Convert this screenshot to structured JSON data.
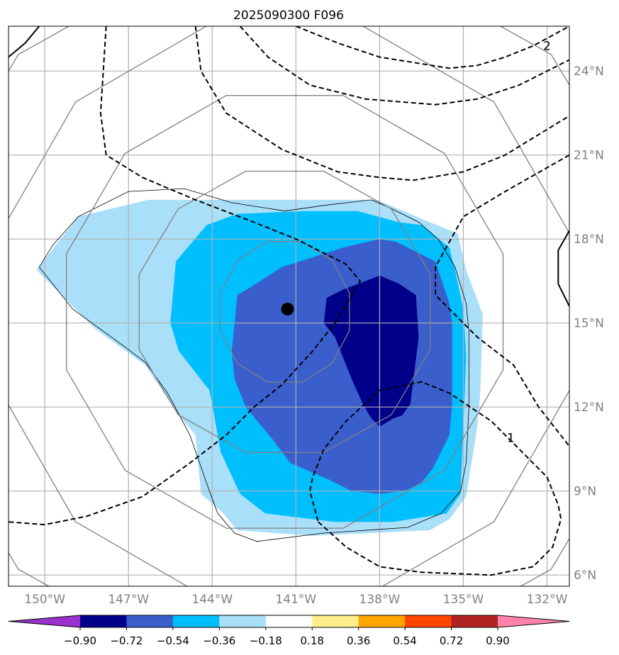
{
  "chart_data": {
    "type": "heatmap",
    "title": "2025090300 F096",
    "projection": "lat-lon map",
    "lon_range": [
      -151.3,
      -131.2
    ],
    "lat_range": [
      5.6,
      25.6
    ],
    "x_ticks": [
      -150,
      -147,
      -144,
      -141,
      -138,
      -135,
      -132
    ],
    "x_tick_labels": [
      "150°W",
      "147°W",
      "144°W",
      "141°W",
      "138°W",
      "135°W",
      "132°W"
    ],
    "y_ticks": [
      6,
      9,
      12,
      15,
      18,
      21,
      24
    ],
    "y_tick_labels": [
      "6°N",
      "9°N",
      "12°N",
      "15°N",
      "18°N",
      "21°N",
      "24°N"
    ],
    "grid": true,
    "center_marker": {
      "lon": -141.3,
      "lat": 15.5
    },
    "filled_levels": [
      {
        "range": [
          -0.36,
          -0.18
        ],
        "color": "#aadff9"
      },
      {
        "range": [
          -0.54,
          -0.36
        ],
        "color": "#00bfff"
      },
      {
        "range": [
          -0.72,
          -0.54
        ],
        "color": "#3a5fcd"
      },
      {
        "range": [
          -0.9,
          -0.72
        ],
        "color": "#00008b"
      }
    ],
    "filled_regions": [
      {
        "level": -0.18,
        "color": "#aadff9",
        "points": [
          [
            -150.3,
            16.9
          ],
          [
            -148.8,
            18.8
          ],
          [
            -146.3,
            19.4
          ],
          [
            -143.2,
            19.4
          ],
          [
            -139.4,
            19.4
          ],
          [
            -138.1,
            19.4
          ],
          [
            -136.2,
            18.6
          ],
          [
            -135.2,
            18.2
          ],
          [
            -134.9,
            16.9
          ],
          [
            -134.3,
            15.3
          ],
          [
            -134.4,
            12.4
          ],
          [
            -134.5,
            11.3
          ],
          [
            -134.9,
            8.8
          ],
          [
            -135.5,
            8.0
          ],
          [
            -136.2,
            7.6
          ],
          [
            -140.4,
            7.4
          ],
          [
            -143.1,
            7.6
          ],
          [
            -143.6,
            8.2
          ],
          [
            -144.4,
            8.9
          ],
          [
            -144.6,
            11.0
          ],
          [
            -145.2,
            11.7
          ],
          [
            -146.4,
            13.5
          ],
          [
            -148.2,
            14.8
          ],
          [
            -150.3,
            16.9
          ]
        ]
      },
      {
        "level": -0.36,
        "color": "#00bfff",
        "points": [
          [
            -145.3,
            17.2
          ],
          [
            -144.2,
            18.5
          ],
          [
            -143.1,
            18.9
          ],
          [
            -140.7,
            19.0
          ],
          [
            -138.8,
            19.0
          ],
          [
            -137.3,
            18.6
          ],
          [
            -136.5,
            18.5
          ],
          [
            -135.5,
            17.7
          ],
          [
            -135.3,
            16.9
          ],
          [
            -135.0,
            15.5
          ],
          [
            -134.9,
            13.8
          ],
          [
            -135.0,
            11.3
          ],
          [
            -135.1,
            8.9
          ],
          [
            -135.6,
            8.2
          ],
          [
            -137.5,
            7.9
          ],
          [
            -139.6,
            7.9
          ],
          [
            -142.1,
            8.2
          ],
          [
            -143.0,
            8.9
          ],
          [
            -143.7,
            10.4
          ],
          [
            -144.0,
            12.1
          ],
          [
            -144.1,
            12.6
          ],
          [
            -145.2,
            14.0
          ],
          [
            -145.5,
            15.0
          ],
          [
            -145.3,
            17.2
          ]
        ]
      },
      {
        "level": -0.54,
        "color": "#3a5fcd",
        "points": [
          [
            -141.5,
            17.0
          ],
          [
            -139.3,
            17.7
          ],
          [
            -138.0,
            18.0
          ],
          [
            -137.4,
            17.9
          ],
          [
            -136.0,
            17.2
          ],
          [
            -135.5,
            15.7
          ],
          [
            -135.4,
            15.0
          ],
          [
            -135.4,
            12.1
          ],
          [
            -135.5,
            11.0
          ],
          [
            -136.1,
            9.8
          ],
          [
            -136.5,
            9.3
          ],
          [
            -137.1,
            9.0
          ],
          [
            -138.0,
            8.9
          ],
          [
            -139.0,
            9.0
          ],
          [
            -139.8,
            9.4
          ],
          [
            -141.2,
            10.0
          ],
          [
            -141.8,
            10.8
          ],
          [
            -142.8,
            12.0
          ],
          [
            -143.2,
            13.0
          ],
          [
            -143.3,
            14.0
          ],
          [
            -143.1,
            16.0
          ],
          [
            -142.6,
            16.3
          ],
          [
            -141.5,
            17.0
          ]
        ]
      },
      {
        "level": -0.72,
        "color": "#00008b",
        "points": [
          [
            -138.0,
            16.7
          ],
          [
            -137.3,
            16.4
          ],
          [
            -136.7,
            16.0
          ],
          [
            -136.6,
            14.5
          ],
          [
            -136.9,
            12.1
          ],
          [
            -137.2,
            11.7
          ],
          [
            -137.5,
            11.6
          ],
          [
            -138.0,
            11.3
          ],
          [
            -138.3,
            11.6
          ],
          [
            -138.6,
            12.1
          ],
          [
            -139.0,
            13.0
          ],
          [
            -139.6,
            14.5
          ],
          [
            -140.0,
            15.0
          ],
          [
            -139.9,
            15.9
          ],
          [
            -139.3,
            16.2
          ],
          [
            -138.5,
            16.5
          ],
          [
            -138.0,
            16.7
          ]
        ]
      }
    ],
    "thin_contours": [
      [
        [
          -150.2,
          17.0
        ],
        [
          -149.7,
          17.8
        ],
        [
          -148.8,
          18.8
        ],
        [
          -147.0,
          19.7
        ],
        [
          -145.0,
          19.8
        ],
        [
          -143.3,
          19.3
        ],
        [
          -141.4,
          19.0
        ],
        [
          -140.0,
          19.2
        ],
        [
          -138.3,
          19.4
        ],
        [
          -137.6,
          19.1
        ],
        [
          -136.6,
          18.6
        ],
        [
          -135.9,
          18.0
        ],
        [
          -135.3,
          17.0
        ],
        [
          -134.9,
          15.7
        ],
        [
          -134.8,
          14.7
        ],
        [
          -134.8,
          12.0
        ],
        [
          -134.9,
          10.0
        ],
        [
          -135.1,
          9.0
        ],
        [
          -135.8,
          8.2
        ],
        [
          -137.0,
          7.7
        ],
        [
          -140.0,
          7.5
        ],
        [
          -142.4,
          7.2
        ],
        [
          -143.2,
          7.5
        ],
        [
          -143.8,
          8.2
        ],
        [
          -144.1,
          9.0
        ],
        [
          -144.8,
          11.0
        ],
        [
          -145.6,
          12.5
        ],
        [
          -146.4,
          13.6
        ],
        [
          -147.2,
          14.2
        ],
        [
          -149.0,
          15.5
        ],
        [
          -150.2,
          17.0
        ]
      ]
    ],
    "gray_circles": [
      {
        "center": [
          -141.4,
          15.4
        ],
        "radius_deg": [
          2.4,
          2.6
        ]
      },
      {
        "center": [
          -141.4,
          15.4
        ],
        "radius_deg": [
          5.4,
          5.2
        ]
      },
      {
        "center": [
          -141.4,
          15.4
        ],
        "radius_deg": [
          8.1,
          8.0
        ]
      },
      {
        "center": [
          -141.4,
          15.4
        ],
        "radius_deg": [
          10.6,
          10.6
        ]
      },
      {
        "center": [
          -141.4,
          15.4
        ],
        "radius_deg": [
          13.5,
          13.0
        ]
      }
    ],
    "dashed_contours": [
      [
        [
          -147.8,
          25.6
        ],
        [
          -148.0,
          22.5
        ],
        [
          -147.8,
          21.0
        ],
        [
          -146.5,
          20.2
        ],
        [
          -144.6,
          19.4
        ],
        [
          -142.5,
          18.6
        ],
        [
          -141.0,
          18.0
        ],
        [
          -139.2,
          17.1
        ],
        [
          -138.7,
          16.5
        ],
        [
          -139.6,
          15.0
        ],
        [
          -140.4,
          14.0
        ],
        [
          -141.5,
          12.8
        ],
        [
          -142.5,
          12.0
        ],
        [
          -143.5,
          11.0
        ],
        [
          -144.8,
          10.0
        ],
        [
          -146.5,
          8.8
        ],
        [
          -148.5,
          8.1
        ],
        [
          -150.0,
          7.8
        ],
        [
          -151.3,
          7.9
        ]
      ],
      [
        [
          -144.6,
          25.6
        ],
        [
          -144.4,
          24.0
        ],
        [
          -143.5,
          22.5
        ],
        [
          -141.5,
          21.2
        ],
        [
          -139.5,
          20.4
        ],
        [
          -138.0,
          20.2
        ],
        [
          -136.8,
          20.1
        ],
        [
          -135.0,
          20.4
        ],
        [
          -133.5,
          21.0
        ],
        [
          -131.2,
          22.4
        ]
      ],
      [
        [
          -143.0,
          25.6
        ],
        [
          -142.0,
          24.5
        ],
        [
          -140.5,
          23.5
        ],
        [
          -138.5,
          23.0
        ],
        [
          -136.0,
          22.8
        ],
        [
          -134.5,
          23.0
        ],
        [
          -133.0,
          23.5
        ],
        [
          -131.2,
          24.4
        ]
      ],
      [
        [
          -141.0,
          25.6
        ],
        [
          -139.5,
          25.0
        ],
        [
          -138.0,
          24.5
        ],
        [
          -135.5,
          24.1
        ],
        [
          -134.5,
          24.2
        ],
        [
          -133.5,
          24.5
        ],
        [
          -132.5,
          24.9
        ],
        [
          -131.2,
          25.6
        ]
      ],
      [
        [
          -131.2,
          21.0
        ],
        [
          -133.5,
          19.7
        ],
        [
          -135.0,
          18.8
        ],
        [
          -135.5,
          17.9
        ],
        [
          -136.0,
          17.0
        ],
        [
          -136.0,
          16.0
        ],
        [
          -135.5,
          15.5
        ],
        [
          -134.5,
          14.5
        ],
        [
          -133.2,
          13.5
        ],
        [
          -132.3,
          12.0
        ],
        [
          -131.2,
          10.6
        ]
      ],
      [
        [
          -140.2,
          7.9
        ],
        [
          -139.2,
          7.0
        ],
        [
          -138.0,
          6.3
        ],
        [
          -136.5,
          6.1
        ],
        [
          -134.0,
          6.0
        ],
        [
          -132.5,
          6.3
        ],
        [
          -131.8,
          7.0
        ],
        [
          -131.5,
          8.0
        ],
        [
          -131.6,
          8.5
        ],
        [
          -132.0,
          9.5
        ],
        [
          -132.5,
          10.0
        ],
        [
          -133.0,
          10.5
        ],
        [
          -134.0,
          11.5
        ],
        [
          -135.5,
          12.5
        ],
        [
          -136.5,
          12.9
        ],
        [
          -138.0,
          12.6
        ],
        [
          -139.2,
          11.5
        ],
        [
          -140.0,
          10.5
        ],
        [
          -140.4,
          9.5
        ],
        [
          -140.5,
          9.0
        ],
        [
          -140.2,
          7.9
        ]
      ]
    ],
    "solid_contours": [
      [
        [
          -151.3,
          24.5
        ],
        [
          -150.7,
          25.0
        ],
        [
          -150.2,
          25.6
        ]
      ],
      [
        [
          -131.2,
          18.3
        ],
        [
          -131.6,
          17.6
        ],
        [
          -131.6,
          16.4
        ],
        [
          -131.2,
          15.6
        ]
      ]
    ],
    "contour_labels": [
      {
        "text": "2",
        "lon": -132.0,
        "lat": 24.9
      },
      {
        "text": "1",
        "lon": -133.3,
        "lat": 10.9
      }
    ],
    "colorbar": {
      "tick_labels": [
        "−0.90",
        "−0.72",
        "−0.54",
        "−0.36",
        "−0.18",
        "0.18",
        "0.36",
        "0.54",
        "0.72",
        "0.90"
      ],
      "colors": [
        "#9932cc",
        "#00008b",
        "#3a5fcd",
        "#00bfff",
        "#aadff9",
        "#ffffff",
        "#ffee8b",
        "#ffa500",
        "#ff4500",
        "#b22222",
        "#ff82ab"
      ]
    }
  }
}
